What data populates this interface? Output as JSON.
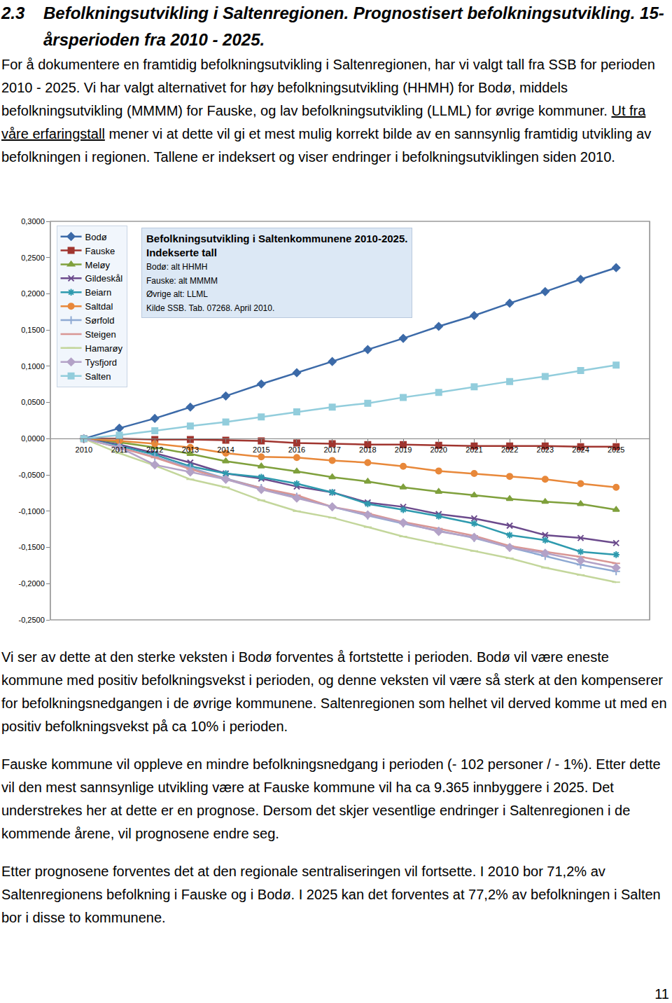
{
  "heading": {
    "number": "2.3",
    "text": "Befolkningsutvikling i Saltenregionen. Prognostisert befolkningsutvikling. 15-årsperioden fra 2010 - 2025."
  },
  "paragraphs_before": [
    [
      {
        "text": "For å dokumentere en framtidig befolkningsutvikling i Saltenregionen, har vi valgt tall fra SSB for perioden 2010 - 2025.  Vi har valgt alternativet for høy befolkningsutvikling (HHMH) for Bodø, middels befolkningsutvikling (MMMM) for Fauske, og lav befolkningsutvikling (LLML) for øvrige kommuner.  "
      },
      {
        "text": "Ut fra våre erfaringstall",
        "underline": true
      },
      {
        "text": " mener vi at dette vil gi et mest mulig korrekt bilde av en sannsynlig framtidig utvikling av befolkningen i regionen.  Tallene er indeksert og viser endringer i befolkningsutviklingen siden 2010."
      }
    ]
  ],
  "chart_data": {
    "type": "line",
    "title": "Befolkningsutvikling i Saltenkommunene 2010-2025. Indekserte tall",
    "annotations": [
      "Bodø: alt HHMH",
      "Fauske: alt MMMM",
      "Øvrige alt: LLML",
      "Kilde SSB. Tab. 07268. April 2010."
    ],
    "categories": [
      "2010",
      "2011",
      "2012",
      "2013",
      "2014",
      "2015",
      "2016",
      "2017",
      "2018",
      "2019",
      "2020",
      "2021",
      "2022",
      "2023",
      "2024",
      "2025"
    ],
    "series": [
      {
        "name": "Bodø",
        "color": "#3c6aa8",
        "marker": "diamond",
        "values": [
          0,
          0.0145,
          0.028,
          0.0436,
          0.059,
          0.0755,
          0.091,
          0.1065,
          0.123,
          0.1385,
          0.155,
          0.17,
          0.187,
          0.203,
          0.22,
          0.236
        ]
      },
      {
        "name": "Fauske",
        "color": "#a0352f",
        "marker": "square",
        "values": [
          0,
          0,
          -0.001,
          -0.001,
          -0.002,
          -0.003,
          -0.006,
          -0.007,
          -0.008,
          -0.008,
          -0.009,
          -0.01,
          -0.01,
          -0.01,
          -0.011,
          -0.011
        ]
      },
      {
        "name": "Meløy",
        "color": "#7fa03c",
        "marker": "triangle-up",
        "values": [
          0,
          -0.005,
          -0.012,
          -0.021,
          -0.031,
          -0.038,
          -0.045,
          -0.053,
          -0.059,
          -0.067,
          -0.073,
          -0.078,
          -0.083,
          -0.087,
          -0.09,
          -0.098
        ]
      },
      {
        "name": "Gildeskål",
        "color": "#6b4a8c",
        "marker": "x",
        "values": [
          0,
          -0.008,
          -0.02,
          -0.033,
          -0.048,
          -0.055,
          -0.066,
          -0.074,
          -0.088,
          -0.094,
          -0.104,
          -0.11,
          -0.12,
          -0.133,
          -0.137,
          -0.144
        ]
      },
      {
        "name": "Beiarn",
        "color": "#2e9aae",
        "marker": "asterisk",
        "values": [
          0,
          -0.01,
          -0.022,
          -0.038,
          -0.048,
          -0.053,
          -0.062,
          -0.074,
          -0.09,
          -0.098,
          -0.107,
          -0.117,
          -0.133,
          -0.14,
          -0.156,
          -0.16
        ]
      },
      {
        "name": "Saltdal",
        "color": "#e8883a",
        "marker": "circle",
        "values": [
          0,
          -0.003,
          -0.007,
          -0.012,
          -0.02,
          -0.025,
          -0.026,
          -0.03,
          -0.033,
          -0.038,
          -0.0445,
          -0.048,
          -0.052,
          -0.056,
          -0.062,
          -0.067
        ]
      },
      {
        "name": "Sørfold",
        "color": "#8ea9d3",
        "marker": "cross",
        "values": [
          0,
          -0.012,
          -0.025,
          -0.04,
          -0.055,
          -0.068,
          -0.08,
          -0.094,
          -0.106,
          -0.117,
          -0.127,
          -0.137,
          -0.15,
          -0.162,
          -0.174,
          -0.183
        ]
      },
      {
        "name": "Steigen",
        "color": "#d99694",
        "marker": "dash",
        "values": [
          0,
          -0.012,
          -0.026,
          -0.042,
          -0.056,
          -0.068,
          -0.078,
          -0.094,
          -0.103,
          -0.115,
          -0.124,
          -0.134,
          -0.148,
          -0.156,
          -0.163,
          -0.172
        ]
      },
      {
        "name": "Hamarøy",
        "color": "#c3d69b",
        "marker": "dash",
        "values": [
          0,
          -0.02,
          -0.037,
          -0.056,
          -0.067,
          -0.085,
          -0.1,
          -0.109,
          -0.122,
          -0.135,
          -0.145,
          -0.155,
          -0.165,
          -0.178,
          -0.188,
          -0.198
        ]
      },
      {
        "name": "Tysfjord",
        "color": "#b3a2c7",
        "marker": "diamond",
        "values": [
          0,
          -0.012,
          -0.036,
          -0.046,
          -0.056,
          -0.07,
          -0.082,
          -0.094,
          -0.105,
          -0.116,
          -0.128,
          -0.136,
          -0.15,
          -0.158,
          -0.168,
          -0.178
        ]
      },
      {
        "name": "Salten",
        "color": "#92cddc",
        "marker": "square",
        "values": [
          0,
          0.005,
          0.011,
          0.0174,
          0.023,
          0.03,
          0.037,
          0.0436,
          0.049,
          0.057,
          0.064,
          0.0717,
          0.079,
          0.086,
          0.094,
          0.1017
        ]
      }
    ],
    "ylim": [
      -0.25,
      0.3
    ],
    "yticks": [
      {
        "value": 0.3,
        "label": "0,3000"
      },
      {
        "value": 0.25,
        "label": "0,2500"
      },
      {
        "value": 0.2,
        "label": "0,2000"
      },
      {
        "value": 0.15,
        "label": "0,1500"
      },
      {
        "value": 0.1,
        "label": "0,1000"
      },
      {
        "value": 0.05,
        "label": "0,0500"
      },
      {
        "value": 0,
        "label": "0,0000"
      },
      {
        "value": -0.05,
        "label": "-0,0500"
      },
      {
        "value": -0.1,
        "label": "-0,1000"
      },
      {
        "value": -0.15,
        "label": "-0,1500"
      },
      {
        "value": -0.2,
        "label": "-0,2000"
      },
      {
        "value": -0.25,
        "label": "-0,2500"
      }
    ],
    "grid": false,
    "legend": "upper left"
  },
  "paragraphs_after": [
    [
      {
        "text": "Vi ser av dette at den sterke veksten i Bodø forventes å fortstette i perioden.  Bodø vil være eneste kommune med positiv befolkningsvekst i perioden, og denne veksten vil være så sterk at den kompenserer for befolkningsnedgangen i de øvrige kommunene. Saltenregionen som helhet vil derved komme ut med en positiv befolkningsvekst på ca 10% i perioden."
      }
    ],
    [
      {
        "text": "Fauske kommune vil oppleve en mindre befolkningsnedgang i perioden (- 102 personer / - 1%).  Etter dette vil den mest sannsynlige utvikling være at Fauske kommune vil ha ca 9.365 innbyggere i 2025.  Det understrekes her at dette er en prognose.  Dersom det skjer vesentlige endringer i Saltenregionen i de kommende årene, vil prognosene endre seg."
      }
    ],
    [
      {
        "text": "Etter prognosene forventes det at den regionale sentraliseringen vil fortsette.  I 2010 bor 71,2% av Saltenregionens befolkning i Fauske og i Bodø.  I 2025 kan det forventes at 77,2% av befolkningen  i Salten bor i disse to kommunene."
      }
    ]
  ],
  "page_number": "11"
}
